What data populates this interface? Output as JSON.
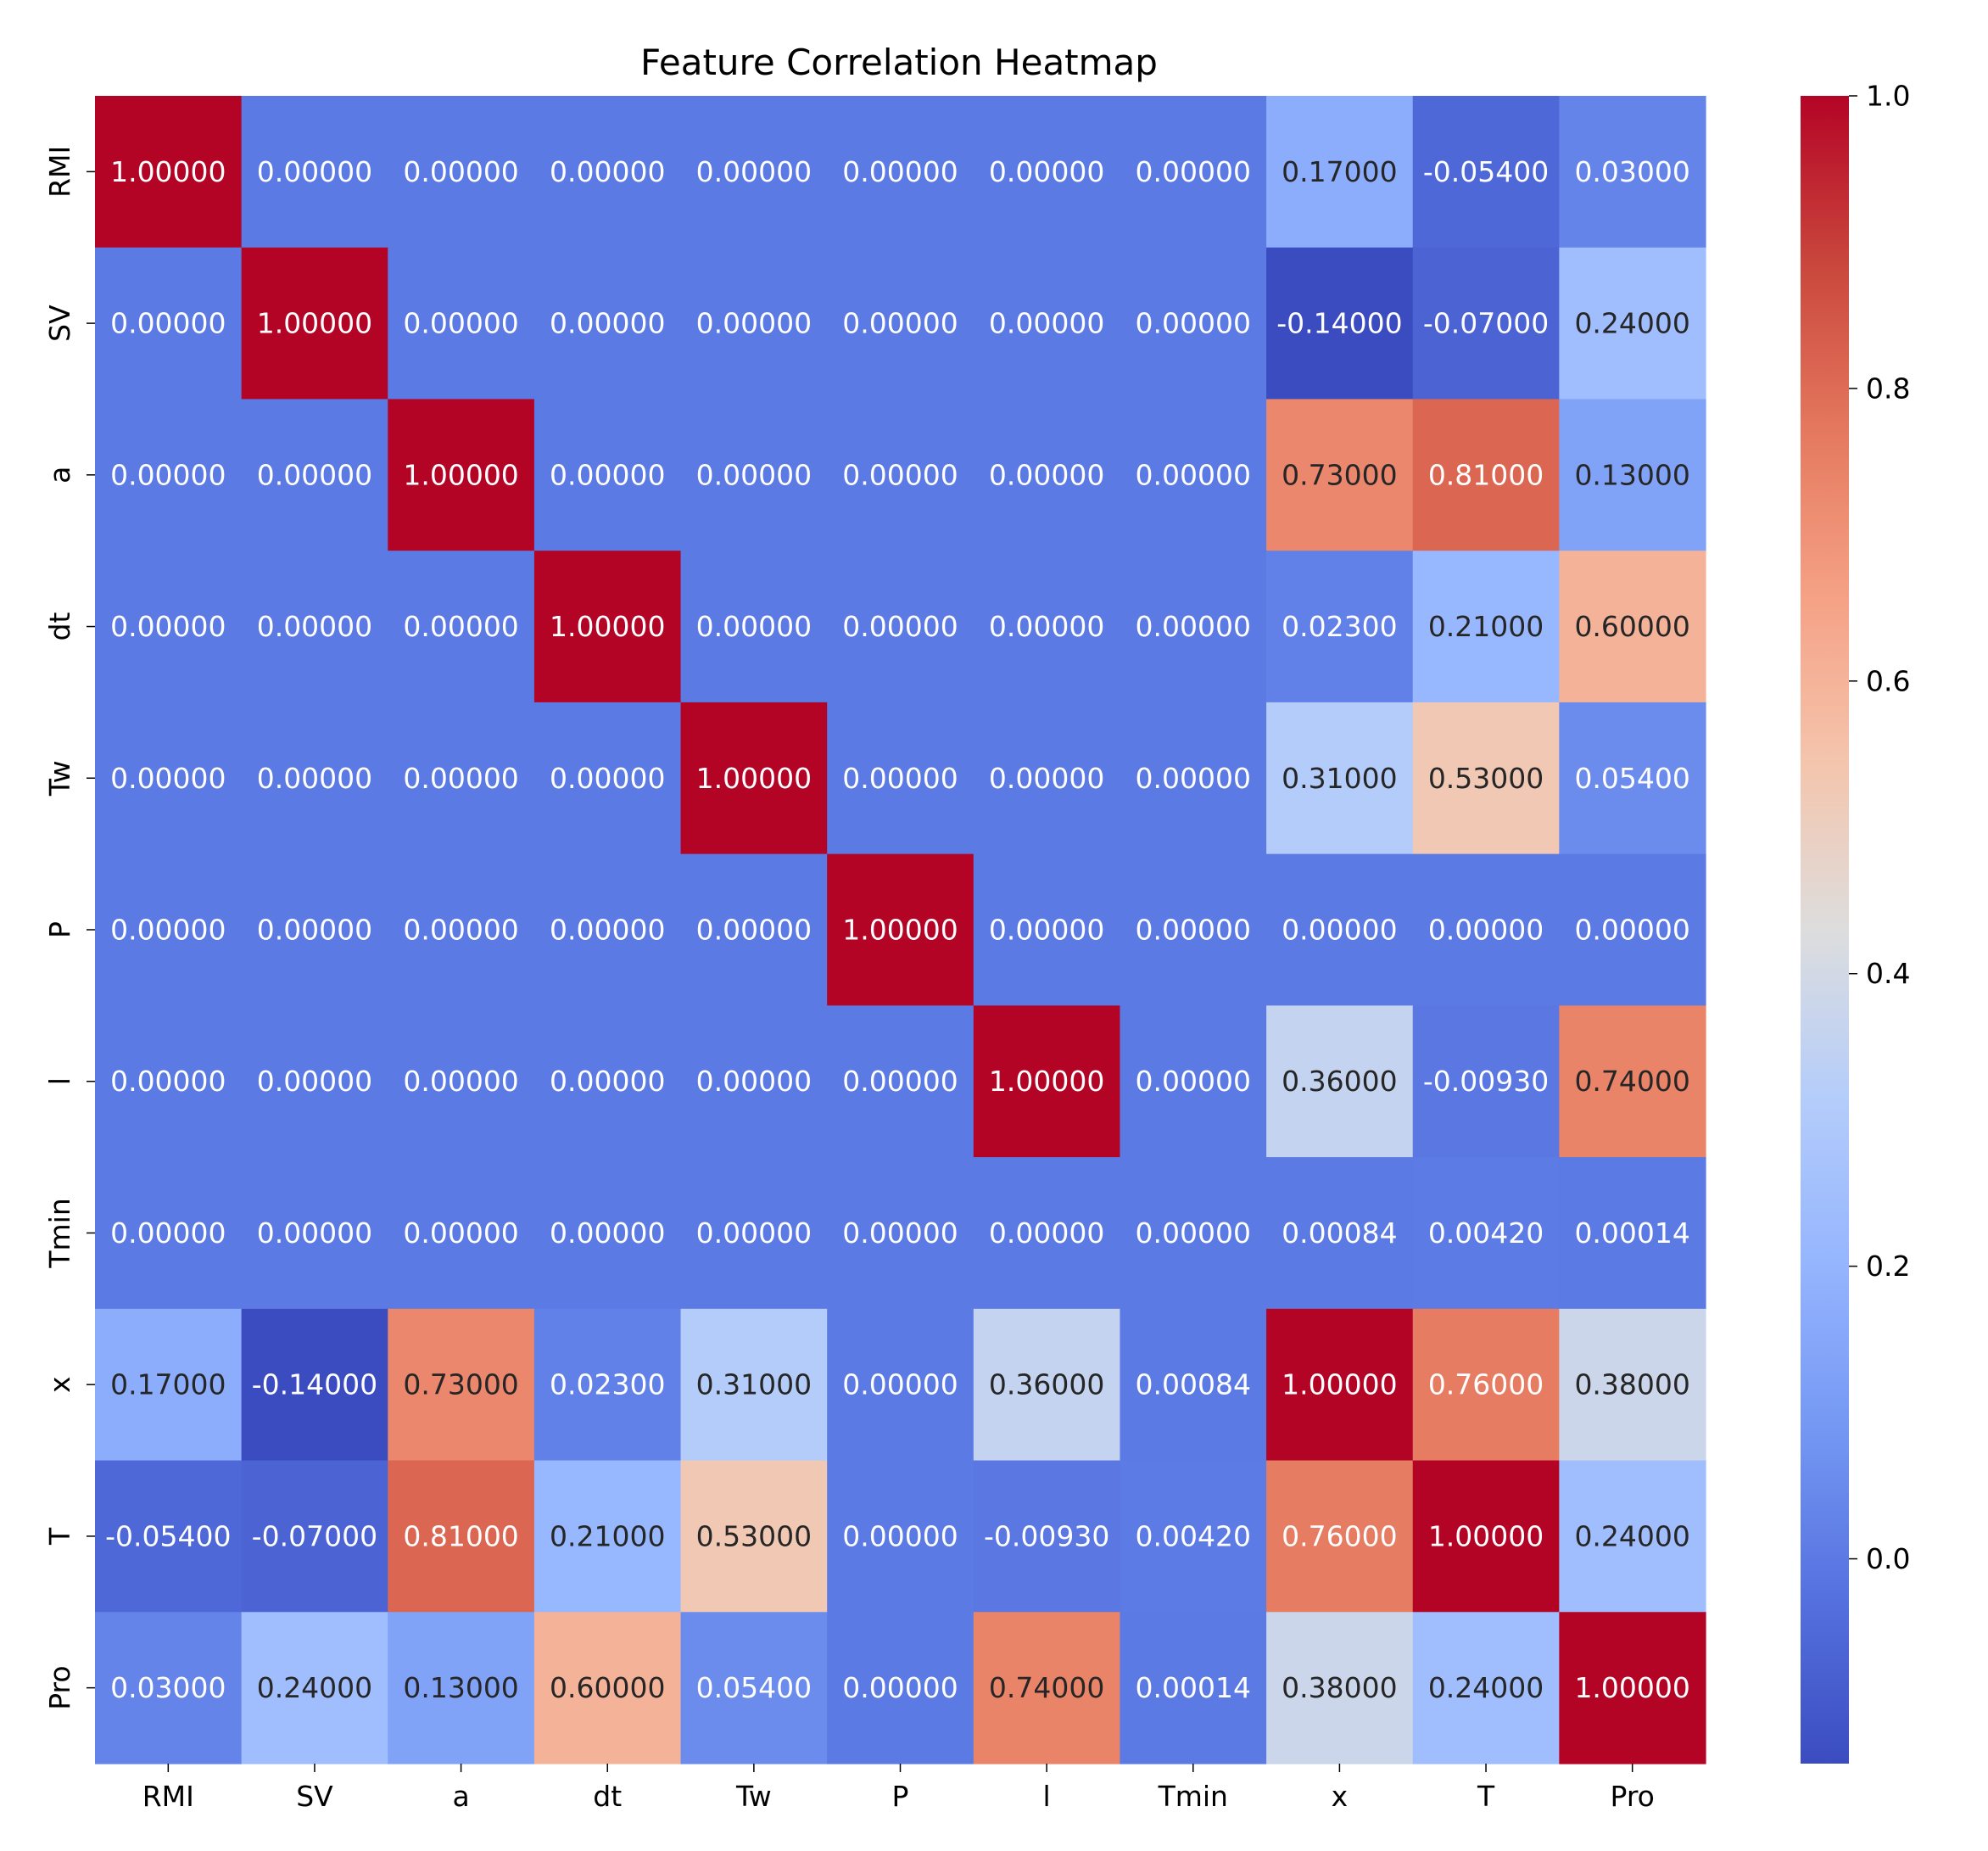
{
  "chart_data": {
    "type": "heatmap",
    "title": "Feature Correlation Heatmap",
    "xlabel": "",
    "ylabel": "",
    "x_categories": [
      "RMI",
      "SV",
      "a",
      "dt",
      "Tw",
      "P",
      "l",
      "Tmin",
      "x",
      "T",
      "Pro"
    ],
    "y_categories": [
      "RMI",
      "SV",
      "a",
      "dt",
      "Tw",
      "P",
      "l",
      "Tmin",
      "x",
      "T",
      "Pro"
    ],
    "values": [
      [
        1.0,
        0.0,
        0.0,
        0.0,
        0.0,
        0.0,
        0.0,
        0.0,
        0.17,
        -0.054,
        0.03
      ],
      [
        0.0,
        1.0,
        0.0,
        0.0,
        0.0,
        0.0,
        0.0,
        0.0,
        -0.14,
        -0.07,
        0.24
      ],
      [
        0.0,
        0.0,
        1.0,
        0.0,
        0.0,
        0.0,
        0.0,
        0.0,
        0.73,
        0.81,
        0.13
      ],
      [
        0.0,
        0.0,
        0.0,
        1.0,
        0.0,
        0.0,
        0.0,
        0.0,
        0.023,
        0.21,
        0.6
      ],
      [
        0.0,
        0.0,
        0.0,
        0.0,
        1.0,
        0.0,
        0.0,
        0.0,
        0.31,
        0.53,
        0.054
      ],
      [
        0.0,
        0.0,
        0.0,
        0.0,
        0.0,
        1.0,
        0.0,
        0.0,
        0.0,
        0.0,
        0.0
      ],
      [
        0.0,
        0.0,
        0.0,
        0.0,
        0.0,
        0.0,
        1.0,
        0.0,
        0.36,
        -0.0093,
        0.74
      ],
      [
        0.0,
        0.0,
        0.0,
        0.0,
        0.0,
        0.0,
        0.0,
        0.0,
        0.00084,
        0.0042,
        0.00014
      ],
      [
        0.17,
        -0.14,
        0.73,
        0.023,
        0.31,
        0.0,
        0.36,
        0.00084,
        1.0,
        0.76,
        0.38
      ],
      [
        -0.054,
        -0.07,
        0.81,
        0.21,
        0.53,
        0.0,
        -0.0093,
        0.0042,
        0.76,
        1.0,
        0.24
      ],
      [
        0.03,
        0.24,
        0.13,
        0.6,
        0.054,
        0.0,
        0.74,
        0.00014,
        0.38,
        0.24,
        1.0
      ]
    ],
    "value_format": "5 decimals",
    "colormap": "coolwarm",
    "vmin": -0.14,
    "vmax": 1.0,
    "colorbar_ticks": [
      "0.0",
      "0.2",
      "0.4",
      "0.6",
      "0.8",
      "1.0"
    ],
    "colorbar_tick_values": [
      0.0,
      0.2,
      0.4,
      0.6,
      0.8,
      1.0
    ],
    "grid": false,
    "legend": "colorbar-right"
  }
}
